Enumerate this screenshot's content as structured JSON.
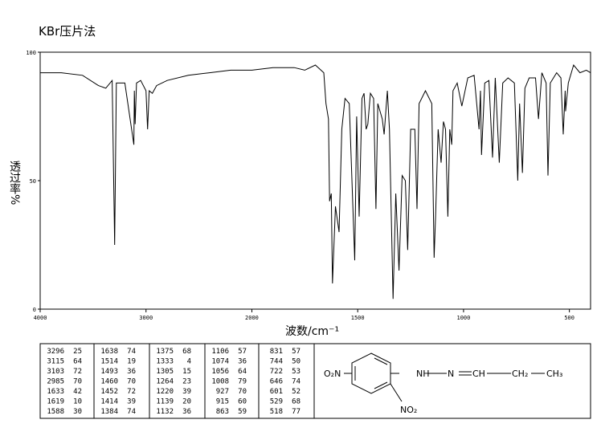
{
  "chart_data": {
    "type": "line",
    "title": "KBr压片法",
    "ylabel": "透过率%",
    "xlabel": "波数/cm⁻¹",
    "color": "#000000",
    "x": [
      4000,
      3800,
      3600,
      3450,
      3380,
      3320,
      3296,
      3280,
      3200,
      3115,
      3110,
      3103,
      3090,
      3050,
      3000,
      2985,
      2970,
      2940,
      2900,
      2800,
      2600,
      2400,
      2200,
      2000,
      1900,
      1800,
      1750,
      1700,
      1660,
      1650,
      1638,
      1633,
      1625,
      1619,
      1605,
      1588,
      1575,
      1560,
      1540,
      1514,
      1505,
      1493,
      1480,
      1470,
      1460,
      1452,
      1440,
      1425,
      1414,
      1405,
      1384,
      1375,
      1360,
      1350,
      1333,
      1320,
      1305,
      1290,
      1275,
      1264,
      1250,
      1230,
      1220,
      1210,
      1180,
      1150,
      1139,
      1132,
      1120,
      1106,
      1095,
      1085,
      1074,
      1065,
      1056,
      1050,
      1030,
      1008,
      980,
      950,
      927,
      920,
      915,
      900,
      880,
      863,
      850,
      831,
      815,
      790,
      760,
      744,
      735,
      722,
      710,
      690,
      660,
      646,
      630,
      610,
      601,
      590,
      560,
      540,
      529,
      520,
      518,
      505,
      480,
      450,
      420,
      400
    ],
    "values": [
      92,
      92,
      91,
      87,
      86,
      89,
      25,
      88,
      88,
      64,
      85,
      72,
      88,
      89,
      85,
      70,
      85,
      84,
      87,
      89,
      91,
      92,
      93,
      93,
      94,
      94,
      93,
      95,
      92,
      80,
      74,
      42,
      45,
      10,
      40,
      30,
      70,
      82,
      80,
      19,
      75,
      36,
      82,
      84,
      70,
      72,
      84,
      82,
      39,
      80,
      74,
      68,
      85,
      70,
      4,
      45,
      15,
      52,
      50,
      23,
      70,
      70,
      39,
      80,
      85,
      80,
      20,
      36,
      70,
      57,
      73,
      70,
      36,
      70,
      64,
      85,
      88,
      79,
      90,
      91,
      70,
      85,
      60,
      88,
      89,
      59,
      90,
      57,
      88,
      90,
      88,
      50,
      80,
      53,
      86,
      90,
      90,
      74,
      92,
      88,
      52,
      88,
      92,
      90,
      68,
      85,
      77,
      88,
      95,
      92,
      93,
      92
    ],
    "xlim": [
      4000,
      400
    ],
    "xticks": [
      4000,
      3000,
      2000,
      1500,
      1000,
      500
    ],
    "ylim": [
      0,
      100
    ],
    "yticks": [
      0,
      50,
      100
    ]
  },
  "peak_table": {
    "columns": [
      [
        [
          3296,
          25
        ],
        [
          3115,
          64
        ],
        [
          3103,
          72
        ],
        [
          2985,
          70
        ],
        [
          1633,
          42
        ],
        [
          1619,
          10
        ],
        [
          1588,
          30
        ]
      ],
      [
        [
          1638,
          74
        ],
        [
          1514,
          19
        ],
        [
          1493,
          36
        ],
        [
          1460,
          70
        ],
        [
          1452,
          72
        ],
        [
          1414,
          39
        ],
        [
          1384,
          74
        ]
      ],
      [
        [
          1375,
          68
        ],
        [
          1333,
          4
        ],
        [
          1305,
          15
        ],
        [
          1264,
          23
        ],
        [
          1220,
          39
        ],
        [
          1139,
          20
        ],
        [
          1132,
          36
        ]
      ],
      [
        [
          1106,
          57
        ],
        [
          1074,
          36
        ],
        [
          1056,
          64
        ],
        [
          1008,
          79
        ],
        [
          927,
          70
        ],
        [
          915,
          60
        ],
        [
          863,
          59
        ]
      ],
      [
        [
          831,
          57
        ],
        [
          744,
          50
        ],
        [
          722,
          53
        ],
        [
          646,
          74
        ],
        [
          601,
          52
        ],
        [
          529,
          68
        ],
        [
          518,
          77
        ]
      ]
    ]
  },
  "structure": {
    "labels": [
      "O₂N",
      "NH",
      "N",
      "CH",
      "CH₂",
      "CH₃",
      "NO₂"
    ]
  }
}
